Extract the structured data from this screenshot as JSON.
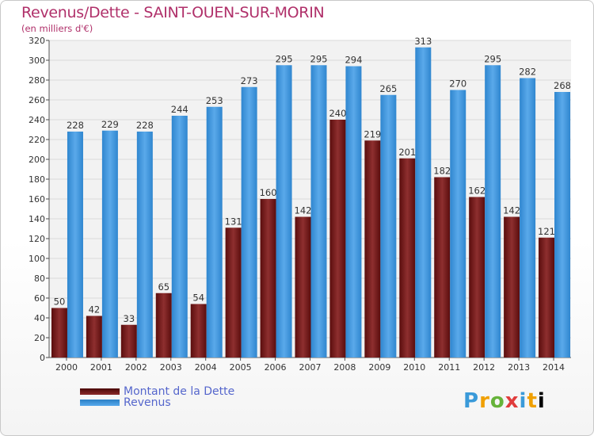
{
  "page": {
    "title": "Revenus/Dette - SAINT-OUEN-SUR-MORIN",
    "subtitle": "(en milliers d'€)",
    "logo": "Proxiti"
  },
  "colors": {
    "debt": "#7a1e1e",
    "revenue": "#3f95dc",
    "title": "#b0306a",
    "legend_text": "#5566cc"
  },
  "chart_data": {
    "type": "bar",
    "categories": [
      "2000",
      "2001",
      "2002",
      "2003",
      "2004",
      "2005",
      "2006",
      "2007",
      "2008",
      "2009",
      "2010",
      "2011",
      "2012",
      "2013",
      "2014"
    ],
    "series": [
      {
        "name": "Montant de la Dette",
        "values": [
          50,
          42,
          33,
          65,
          54,
          131,
          160,
          142,
          240,
          219,
          201,
          182,
          162,
          142,
          121
        ]
      },
      {
        "name": "Revenus",
        "values": [
          228,
          229,
          228,
          244,
          253,
          273,
          295,
          295,
          294,
          265,
          313,
          270,
          295,
          282,
          268
        ]
      }
    ],
    "ylim": [
      0,
      320
    ],
    "yticks": [
      0,
      20,
      40,
      60,
      80,
      100,
      120,
      140,
      160,
      180,
      200,
      220,
      240,
      260,
      280,
      300,
      320
    ],
    "grid": true,
    "legend_position": "bottom-left"
  }
}
